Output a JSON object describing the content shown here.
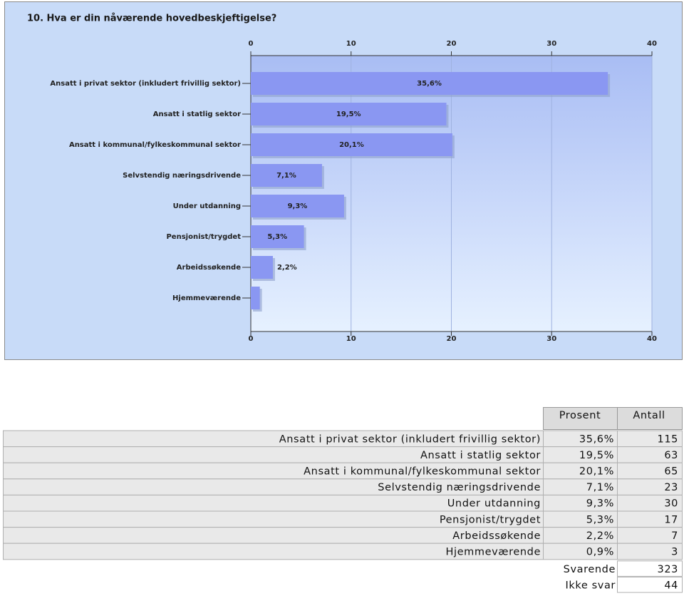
{
  "chart_data": {
    "type": "hbar",
    "title": "10. Hva er din nåværende hovedbeskjeftigelse?",
    "categories": [
      "Ansatt i privat sektor (inkludert frivillig sektor)",
      "Ansatt i statlig sektor",
      "Ansatt i kommunal/fylkeskommunal sektor",
      "Selvstendig næringsdrivende",
      "Under utdanning",
      "Pensjonist/trygdet",
      "Arbeidssøkende",
      "Hjemmeværende"
    ],
    "values": [
      35.6,
      19.5,
      20.1,
      7.1,
      9.3,
      5.3,
      2.2,
      0.9
    ],
    "value_labels": [
      "35,6%",
      "19,5%",
      "20,1%",
      "7,1%",
      "9,3%",
      "5,3%",
      "2,2%",
      null
    ],
    "color": "#8a97f2",
    "xlim": [
      0,
      40
    ],
    "xticks": [
      0,
      10,
      20,
      30,
      40
    ],
    "grid": true
  },
  "table": {
    "header": [
      "Prosent",
      "Antall"
    ],
    "rows": [
      [
        "Ansatt i privat sektor (inkludert frivillig sektor)",
        "35,6%",
        115
      ],
      [
        "Ansatt i statlig sektor",
        "19,5%",
        63
      ],
      [
        "Ansatt i kommunal/fylkeskommunal sektor",
        "20,1%",
        65
      ],
      [
        "Selvstendig næringsdrivende",
        "7,1%",
        23
      ],
      [
        "Under utdanning",
        "9,3%",
        30
      ],
      [
        "Pensjonist/trygdet",
        "5,3%",
        17
      ],
      [
        "Arbeidssøkende",
        "2,2%",
        7
      ],
      [
        "Hjemmeværende",
        "0,9%",
        3
      ]
    ],
    "summary": [
      [
        "Svarende",
        323
      ],
      [
        "Ikke svar",
        44
      ]
    ]
  }
}
